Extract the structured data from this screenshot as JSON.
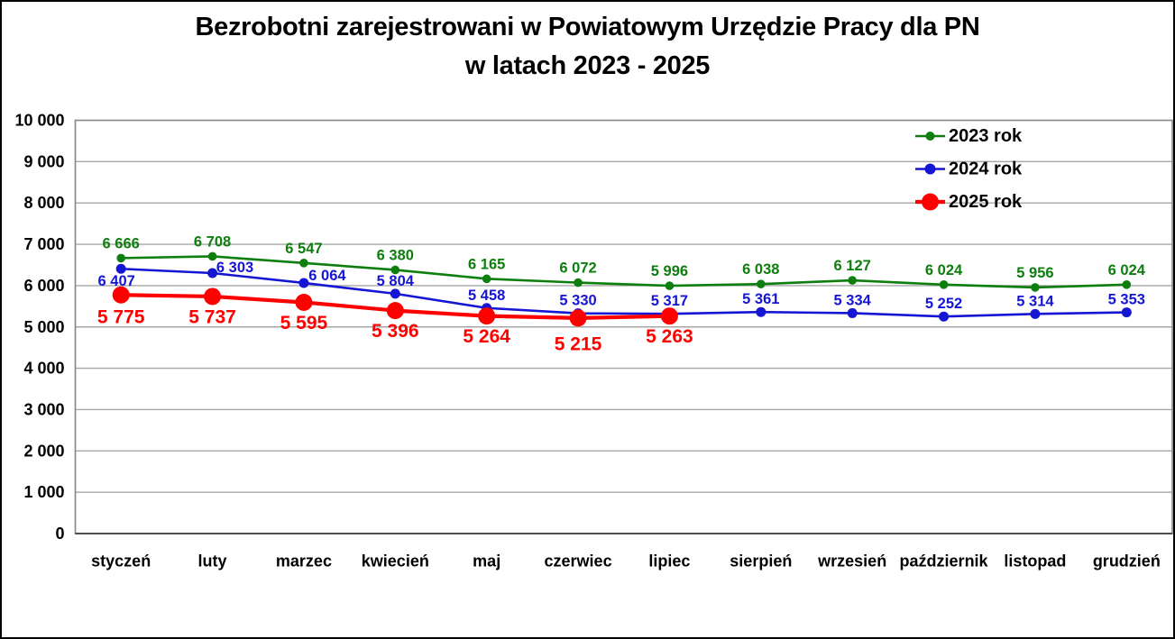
{
  "chart_data": {
    "type": "line",
    "title": "Bezrobotni zarejestrowani w Powiatowym Urzędzie Pracy dla PN",
    "subtitle": "w latach 2023 - 2025",
    "categories": [
      "styczeń",
      "luty",
      "marzec",
      "kwiecień",
      "maj",
      "czerwiec",
      "lipiec",
      "sierpień",
      "wrzesień",
      "październik",
      "listopad",
      "grudzień"
    ],
    "series": [
      {
        "name": "2023 rok",
        "color": "#0e7e0e",
        "values": [
          6666,
          6708,
          6547,
          6380,
          6165,
          6072,
          5996,
          6038,
          6127,
          6024,
          5956,
          6024
        ]
      },
      {
        "name": "2024 rok",
        "color": "#1515d4",
        "values": [
          6407,
          6303,
          6064,
          5804,
          5458,
          5330,
          5317,
          5361,
          5334,
          5252,
          5314,
          5353
        ]
      },
      {
        "name": "2025 rok",
        "color": "#fe0000",
        "values": [
          5775,
          5737,
          5595,
          5396,
          5264,
          5215,
          5263,
          null,
          null,
          null,
          null,
          null
        ]
      }
    ],
    "ylim": [
      0,
      10000
    ],
    "ytick_step": 1000,
    "ytick_labels": [
      "0",
      "1 000",
      "2 000",
      "3 000",
      "4 000",
      "5 000",
      "6 000",
      "7 000",
      "8 000",
      "9 000",
      "10 000"
    ],
    "grid": true,
    "data_labels": true,
    "legend_position": "top-right",
    "legend_labels": [
      "2023 rok",
      "2024 rok",
      "2025 rok"
    ]
  },
  "colors": {
    "background": "#ffffff",
    "text": "#000000",
    "grid": "#a6a6a6",
    "plot_border": "#8a8a8a",
    "axis_line": "#4d4d4d",
    "series_2023": "#0e7e0e",
    "series_2024": "#1515d4",
    "series_2025": "#fe0000"
  }
}
